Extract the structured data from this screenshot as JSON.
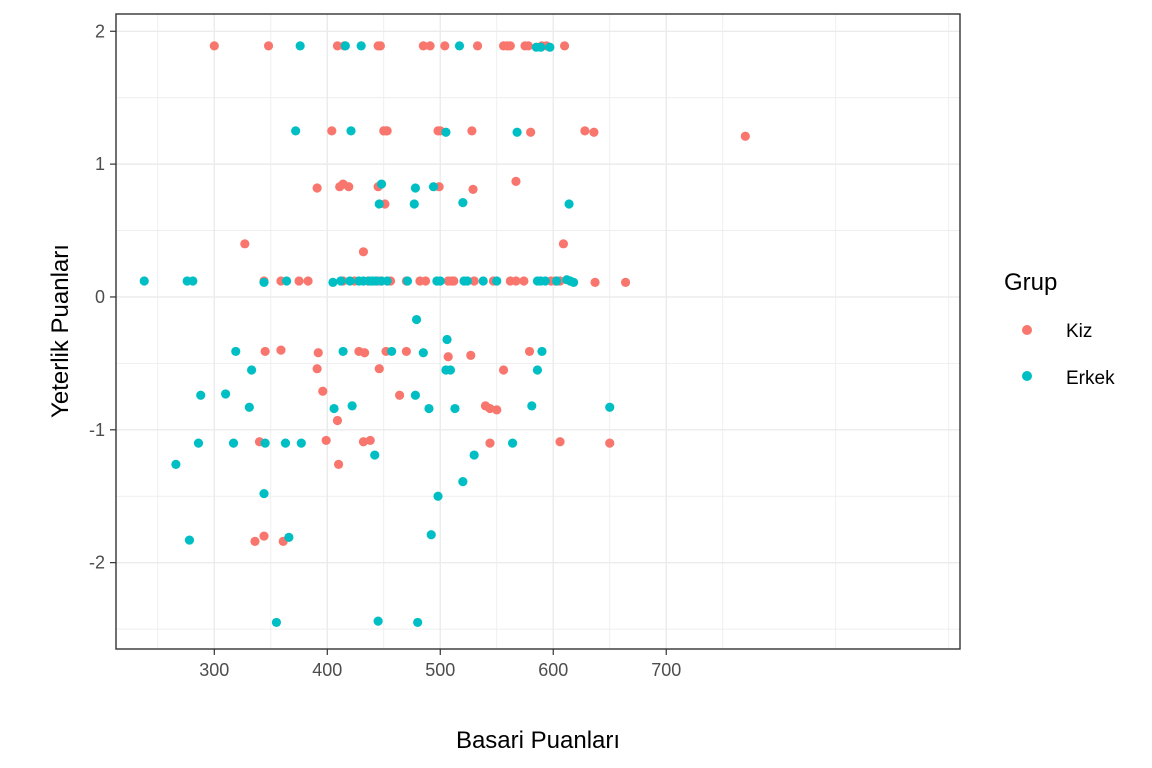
{
  "chart_data": {
    "type": "scatter",
    "xlabel": "Basari Puanları",
    "ylabel": "Yeterlik Puanları",
    "xlim": [
      213,
      960
    ],
    "ylim": [
      -2.65,
      2.13
    ],
    "x_ticks": [
      300,
      400,
      500,
      600,
      700
    ],
    "y_ticks": [
      -2,
      -1,
      0,
      1,
      2
    ],
    "grid": true,
    "legend": {
      "title": "Grup",
      "position": "right"
    },
    "series": [
      {
        "name": "Kiz",
        "color": "#F8766D",
        "points": [
          [
            300,
            1.89
          ],
          [
            348,
            1.89
          ],
          [
            409,
            1.89
          ],
          [
            415,
            1.89
          ],
          [
            445,
            1.89
          ],
          [
            447,
            1.89
          ],
          [
            485,
            1.89
          ],
          [
            491,
            1.89
          ],
          [
            504,
            1.89
          ],
          [
            533,
            1.89
          ],
          [
            556,
            1.89
          ],
          [
            559,
            1.89
          ],
          [
            562,
            1.89
          ],
          [
            575,
            1.89
          ],
          [
            578,
            1.89
          ],
          [
            590,
            1.89
          ],
          [
            594,
            1.89
          ],
          [
            610,
            1.89
          ],
          [
            404,
            1.25
          ],
          [
            450,
            1.25
          ],
          [
            452,
            1.25
          ],
          [
            453,
            1.25
          ],
          [
            498,
            1.25
          ],
          [
            500,
            1.25
          ],
          [
            528,
            1.25
          ],
          [
            580,
            1.24
          ],
          [
            628,
            1.25
          ],
          [
            636,
            1.24
          ],
          [
            770,
            1.21
          ],
          [
            391,
            0.82
          ],
          [
            411,
            0.83
          ],
          [
            414,
            0.85
          ],
          [
            419,
            0.83
          ],
          [
            445,
            0.83
          ],
          [
            451,
            0.7
          ],
          [
            499,
            0.83
          ],
          [
            529,
            0.81
          ],
          [
            567,
            0.87
          ],
          [
            327,
            0.4
          ],
          [
            432,
            0.34
          ],
          [
            609,
            0.4
          ],
          [
            344,
            0.12
          ],
          [
            359,
            0.12
          ],
          [
            375,
            0.12
          ],
          [
            383,
            0.12
          ],
          [
            414,
            0.12
          ],
          [
            424,
            0.12
          ],
          [
            436,
            0.12
          ],
          [
            445,
            0.12
          ],
          [
            456,
            0.12
          ],
          [
            470,
            0.12
          ],
          [
            482,
            0.12
          ],
          [
            487,
            0.12
          ],
          [
            507,
            0.12
          ],
          [
            510,
            0.12
          ],
          [
            512,
            0.12
          ],
          [
            530,
            0.12
          ],
          [
            547,
            0.12
          ],
          [
            562,
            0.12
          ],
          [
            567,
            0.12
          ],
          [
            574,
            0.12
          ],
          [
            598,
            0.12
          ],
          [
            602,
            0.12
          ],
          [
            606,
            0.12
          ],
          [
            637,
            0.11
          ],
          [
            664,
            0.11
          ],
          [
            345,
            -0.41
          ],
          [
            359,
            -0.4
          ],
          [
            392,
            -0.42
          ],
          [
            391,
            -0.54
          ],
          [
            428,
            -0.41
          ],
          [
            433,
            -0.42
          ],
          [
            446,
            -0.54
          ],
          [
            452,
            -0.41
          ],
          [
            470,
            -0.41
          ],
          [
            507,
            -0.45
          ],
          [
            527,
            -0.44
          ],
          [
            556,
            -0.55
          ],
          [
            579,
            -0.41
          ],
          [
            396,
            -0.71
          ],
          [
            464,
            -0.74
          ],
          [
            409,
            -0.93
          ],
          [
            540,
            -0.82
          ],
          [
            544,
            -0.84
          ],
          [
            550,
            -0.85
          ],
          [
            340,
            -1.09
          ],
          [
            399,
            -1.08
          ],
          [
            432,
            -1.09
          ],
          [
            438,
            -1.08
          ],
          [
            544,
            -1.1
          ],
          [
            606,
            -1.09
          ],
          [
            650,
            -1.1
          ],
          [
            410,
            -1.26
          ],
          [
            336,
            -1.84
          ],
          [
            344,
            -1.8
          ],
          [
            361,
            -1.84
          ]
        ]
      },
      {
        "name": "Erkek",
        "color": "#00BFC4",
        "points": [
          [
            376,
            1.89
          ],
          [
            416,
            1.89
          ],
          [
            430,
            1.89
          ],
          [
            517,
            1.89
          ],
          [
            585,
            1.88
          ],
          [
            589,
            1.88
          ],
          [
            597,
            1.88
          ],
          [
            372,
            1.25
          ],
          [
            421,
            1.25
          ],
          [
            505,
            1.24
          ],
          [
            568,
            1.24
          ],
          [
            448,
            0.85
          ],
          [
            446,
            0.7
          ],
          [
            478,
            0.82
          ],
          [
            477,
            0.7
          ],
          [
            494,
            0.83
          ],
          [
            520,
            0.71
          ],
          [
            614,
            0.7
          ],
          [
            238,
            0.12
          ],
          [
            276,
            0.12
          ],
          [
            281,
            0.12
          ],
          [
            344,
            0.11
          ],
          [
            364,
            0.12
          ],
          [
            405,
            0.11
          ],
          [
            412,
            0.12
          ],
          [
            420,
            0.12
          ],
          [
            428,
            0.12
          ],
          [
            432,
            0.12
          ],
          [
            437,
            0.12
          ],
          [
            440,
            0.12
          ],
          [
            443,
            0.12
          ],
          [
            448,
            0.12
          ],
          [
            453,
            0.12
          ],
          [
            471,
            0.12
          ],
          [
            497,
            0.12
          ],
          [
            500,
            0.12
          ],
          [
            521,
            0.12
          ],
          [
            524,
            0.12
          ],
          [
            538,
            0.12
          ],
          [
            550,
            0.12
          ],
          [
            586,
            0.12
          ],
          [
            589,
            0.12
          ],
          [
            593,
            0.12
          ],
          [
            603,
            0.12
          ],
          [
            612,
            0.13
          ],
          [
            615,
            0.12
          ],
          [
            618,
            0.11
          ],
          [
            479,
            -0.17
          ],
          [
            506,
            -0.32
          ],
          [
            319,
            -0.41
          ],
          [
            414,
            -0.41
          ],
          [
            457,
            -0.41
          ],
          [
            485,
            -0.42
          ],
          [
            590,
            -0.41
          ],
          [
            333,
            -0.55
          ],
          [
            505,
            -0.55
          ],
          [
            509,
            -0.55
          ],
          [
            586,
            -0.55
          ],
          [
            288,
            -0.74
          ],
          [
            310,
            -0.73
          ],
          [
            331,
            -0.83
          ],
          [
            406,
            -0.84
          ],
          [
            422,
            -0.82
          ],
          [
            478,
            -0.74
          ],
          [
            490,
            -0.84
          ],
          [
            513,
            -0.84
          ],
          [
            581,
            -0.82
          ],
          [
            650,
            -0.83
          ],
          [
            286,
            -1.1
          ],
          [
            317,
            -1.1
          ],
          [
            345,
            -1.1
          ],
          [
            363,
            -1.1
          ],
          [
            377,
            -1.1
          ],
          [
            442,
            -1.19
          ],
          [
            530,
            -1.19
          ],
          [
            564,
            -1.1
          ],
          [
            266,
            -1.26
          ],
          [
            344,
            -1.48
          ],
          [
            498,
            -1.5
          ],
          [
            520,
            -1.39
          ],
          [
            278,
            -1.83
          ],
          [
            366,
            -1.81
          ],
          [
            492,
            -1.79
          ],
          [
            355,
            -2.45
          ],
          [
            445,
            -2.44
          ],
          [
            480,
            -2.45
          ]
        ]
      }
    ]
  }
}
